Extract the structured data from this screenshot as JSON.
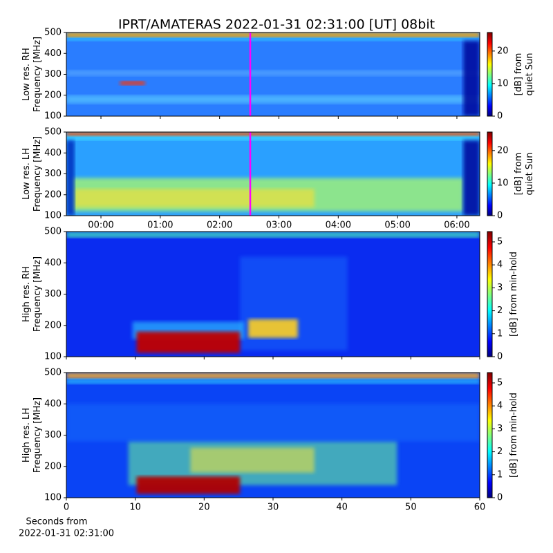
{
  "title": "IPRT/AMATERAS 2022-01-31 02:31:00 [UT]   08bit",
  "chart_data": [
    {
      "type": "heatmap",
      "ylabel": [
        "Low res. RH",
        "Frequency [MHz]"
      ],
      "colormap": "jet",
      "xlim": [
        -0.583,
        6.385
      ],
      "xticks": [
        0,
        1,
        2,
        3,
        4,
        5,
        6
      ],
      "xticklabels": false,
      "ylim": [
        100,
        500
      ],
      "yticks": [
        100,
        200,
        300,
        400,
        500
      ],
      "clim": [
        0,
        25.7
      ],
      "cticks": [
        0,
        10,
        20
      ],
      "colorbar_label": [
        "[dB] from",
        "quiet Sun"
      ],
      "marker_x": 2.5167,
      "marker_color": "#ff00ff"
    },
    {
      "type": "heatmap",
      "ylabel": [
        "Low res. LH",
        "Frequency [MHz]"
      ],
      "colormap": "jet",
      "xlim": [
        -0.583,
        6.385
      ],
      "xticks": [
        {
          "value": 0,
          "label": "00:00"
        },
        {
          "value": 1,
          "label": "01:00"
        },
        {
          "value": 2,
          "label": "02:00"
        },
        {
          "value": 3,
          "label": "03:00"
        },
        {
          "value": 4,
          "label": "04:00"
        },
        {
          "value": 5,
          "label": "05:00"
        },
        {
          "value": 6,
          "label": "06:00"
        }
      ],
      "xticklabels": true,
      "ylim": [
        100,
        500
      ],
      "yticks": [
        100,
        200,
        300,
        400,
        500
      ],
      "clim": [
        0,
        25.7
      ],
      "cticks": [
        0,
        10,
        20
      ],
      "colorbar_label": [
        "[dB] from",
        "quiet Sun"
      ],
      "marker_x": 2.5167,
      "marker_color": "#ff00ff"
    },
    {
      "type": "heatmap",
      "ylabel": [
        "High res. RH",
        "Frequency [MHz]"
      ],
      "colormap": "jet",
      "xlim": [
        0,
        60
      ],
      "xticks": [
        0,
        10,
        20,
        30,
        40,
        50,
        60
      ],
      "xticklabels": false,
      "ylim": [
        100,
        500
      ],
      "yticks": [
        100,
        200,
        300,
        400,
        500
      ],
      "clim": [
        0,
        5.45
      ],
      "cticks": [
        0,
        1,
        2,
        3,
        4,
        5
      ],
      "colorbar_label": [
        "[dB] from min-hold"
      ]
    },
    {
      "type": "heatmap",
      "ylabel": [
        "High res. LH",
        "Frequency [MHz]"
      ],
      "colormap": "jet",
      "xlim": [
        0,
        60
      ],
      "xticks": [
        0,
        10,
        20,
        30,
        40,
        50,
        60
      ],
      "xticklabels": true,
      "ylim": [
        100,
        500
      ],
      "yticks": [
        100,
        200,
        300,
        400,
        500
      ],
      "clim": [
        0,
        5.45
      ],
      "cticks": [
        0,
        1,
        2,
        3,
        4,
        5
      ],
      "colorbar_label": [
        "[dB] from min-hold"
      ],
      "xlabel": [
        "Seconds from",
        "2022-01-31 02:31:00"
      ]
    }
  ]
}
